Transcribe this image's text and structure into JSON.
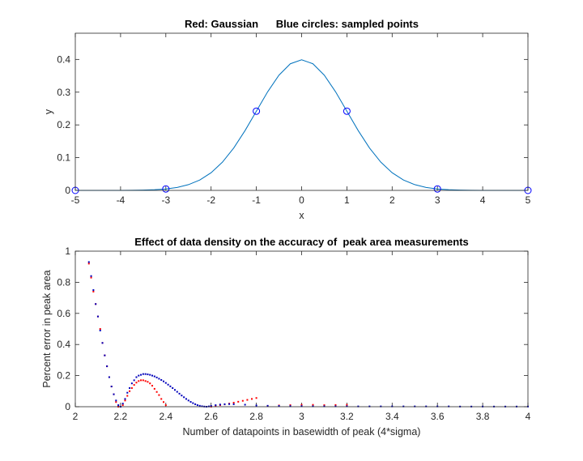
{
  "chart_data": [
    {
      "type": "line",
      "title": "Red: Gaussian      Blue circles: sampled points",
      "xlabel": "x",
      "ylabel": "y",
      "xlim": [
        -5,
        5
      ],
      "ylim": [
        0,
        0.48
      ],
      "xticks": [
        -5,
        -4,
        -3,
        -2,
        -1,
        0,
        1,
        2,
        3,
        4,
        5
      ],
      "xtick_labels": [
        "-5",
        "-4",
        "-3",
        "-2",
        "-1",
        "0",
        "1",
        "2",
        "3",
        "4",
        "5"
      ],
      "yticks": [
        0,
        0.1,
        0.2,
        0.3,
        0.4
      ],
      "ytick_labels": [
        "0",
        "0.1",
        "0.2",
        "0.3",
        "0.4"
      ],
      "grid": false,
      "colors": {
        "line": "#0072bd",
        "markers": "#0000ff"
      },
      "series": [
        {
          "kind": "line",
          "x": [
            -5,
            -4.75,
            -4.5,
            -4.25,
            -4,
            -3.75,
            -3.5,
            -3.25,
            -3,
            -2.75,
            -2.5,
            -2.25,
            -2,
            -1.75,
            -1.5,
            -1.25,
            -1,
            -0.75,
            -0.5,
            -0.25,
            0,
            0.25,
            0.5,
            0.75,
            1,
            1.25,
            1.5,
            1.75,
            2,
            2.25,
            2.5,
            2.75,
            3,
            3.25,
            3.5,
            3.75,
            4,
            4.25,
            4.5,
            4.75,
            5
          ],
          "y": [
            1.5e-06,
            5.1e-06,
            1.6e-05,
            4.9e-05,
            0.000134,
            0.000353,
            0.000873,
            0.002029,
            0.00443,
            0.00909,
            0.01753,
            0.03174,
            0.05399,
            0.08628,
            0.12952,
            0.18265,
            0.24197,
            0.30114,
            0.35207,
            0.38667,
            0.39894,
            0.38667,
            0.35207,
            0.30114,
            0.24197,
            0.18265,
            0.12952,
            0.08628,
            0.05399,
            0.03174,
            0.01753,
            0.00909,
            0.00443,
            0.002029,
            0.000873,
            0.000353,
            0.000134,
            4.9e-05,
            1.6e-05,
            5.1e-06,
            1.5e-06
          ]
        },
        {
          "kind": "markers",
          "x": [
            -5,
            -3,
            -1,
            1,
            3,
            5
          ],
          "y": [
            1.5e-06,
            0.00443,
            0.24197,
            0.24197,
            0.00443,
            1.5e-06
          ]
        }
      ]
    },
    {
      "type": "scatter",
      "title": "Effect of data density on the accuracy of  peak area measurements",
      "xlabel": "Number of datapoints in basewidth of peak (4*sigma)",
      "ylabel": "Percent error in peak area",
      "xlim": [
        2,
        4
      ],
      "ylim": [
        0,
        1
      ],
      "xticks": [
        2,
        2.2,
        2.4,
        2.6,
        2.8,
        3,
        3.2,
        3.4,
        3.6,
        3.8,
        4
      ],
      "xtick_labels": [
        "2",
        "2.2",
        "2.4",
        "2.6",
        "2.8",
        "3",
        "3.2",
        "3.4",
        "3.6",
        "3.8",
        "4"
      ],
      "yticks": [
        0,
        0.2,
        0.4,
        0.6,
        0.8,
        1
      ],
      "ytick_labels": [
        "0",
        "0.2",
        "0.4",
        "0.6",
        "0.8",
        "1"
      ],
      "grid": false,
      "colors": {
        "red_series": "#ff0000",
        "blue_series": "#0000bb"
      },
      "series": [
        {
          "color_role": "red_series",
          "x": [
            2.06,
            2.07,
            2.08,
            2.09,
            2.1,
            2.11,
            2.12,
            2.13,
            2.14,
            2.15,
            2.16,
            2.17,
            2.18,
            2.19,
            2.2,
            2.21,
            2.22,
            2.23,
            2.24,
            2.25,
            2.26,
            2.27,
            2.28,
            2.29,
            2.3,
            2.31,
            2.32,
            2.33,
            2.34,
            2.35,
            2.36,
            2.37,
            2.38,
            2.39,
            2.4,
            2.6,
            2.62,
            2.64,
            2.66,
            2.68,
            2.7,
            2.72,
            2.74,
            2.76,
            2.78,
            2.8,
            2.85,
            2.9,
            2.95,
            3.0,
            3.05,
            3.1,
            3.15,
            3.2
          ],
          "y": [
            0.92,
            0.83,
            0.74,
            0.66,
            0.58,
            0.5,
            0.41,
            0.33,
            0.26,
            0.19,
            0.13,
            0.08,
            0.03,
            0.0,
            0.0,
            0.01,
            0.04,
            0.07,
            0.1,
            0.12,
            0.14,
            0.155,
            0.165,
            0.17,
            0.17,
            0.165,
            0.16,
            0.15,
            0.135,
            0.115,
            0.095,
            0.075,
            0.05,
            0.03,
            0.01,
            0.0,
            0.005,
            0.01,
            0.015,
            0.02,
            0.026,
            0.032,
            0.038,
            0.044,
            0.05,
            0.056,
            0.005,
            0.008,
            0.01,
            0.012,
            0.012,
            0.01,
            0.011,
            0.012
          ]
        },
        {
          "color_role": "blue_series",
          "x": [
            2.06,
            2.07,
            2.08,
            2.09,
            2.1,
            2.11,
            2.12,
            2.13,
            2.14,
            2.15,
            2.16,
            2.17,
            2.18,
            2.19,
            2.2,
            2.21,
            2.22,
            2.23,
            2.24,
            2.25,
            2.26,
            2.27,
            2.28,
            2.29,
            2.3,
            2.31,
            2.32,
            2.33,
            2.34,
            2.35,
            2.36,
            2.37,
            2.38,
            2.39,
            2.4,
            2.41,
            2.42,
            2.43,
            2.44,
            2.45,
            2.46,
            2.47,
            2.48,
            2.49,
            2.5,
            2.51,
            2.52,
            2.53,
            2.54,
            2.55,
            2.56,
            2.57,
            2.58,
            2.59,
            2.6,
            2.62,
            2.64,
            2.66,
            2.68,
            2.7,
            2.75,
            2.8,
            2.85,
            2.9,
            2.95,
            3.0,
            3.05,
            3.1,
            3.15,
            3.2,
            3.25,
            3.3,
            3.35,
            3.4,
            3.45,
            3.5,
            3.55,
            3.6,
            3.65,
            3.7,
            3.75,
            3.8,
            3.85,
            3.9,
            3.95,
            4.0
          ],
          "y": [
            0.93,
            0.84,
            0.75,
            0.66,
            0.58,
            0.49,
            0.41,
            0.33,
            0.26,
            0.19,
            0.13,
            0.08,
            0.04,
            0.01,
            0.0,
            0.02,
            0.05,
            0.09,
            0.12,
            0.15,
            0.17,
            0.19,
            0.2,
            0.205,
            0.21,
            0.21,
            0.208,
            0.205,
            0.2,
            0.195,
            0.188,
            0.18,
            0.172,
            0.163,
            0.153,
            0.142,
            0.131,
            0.12,
            0.108,
            0.096,
            0.084,
            0.072,
            0.061,
            0.05,
            0.04,
            0.031,
            0.023,
            0.016,
            0.01,
            0.006,
            0.003,
            0.001,
            0.0,
            0.002,
            0.005,
            0.01,
            0.014,
            0.016,
            0.017,
            0.016,
            0.013,
            0.008,
            0.006,
            0.005,
            0.004,
            0.004,
            0.003,
            0.003,
            0.003,
            0.003,
            0.002,
            0.002,
            0.002,
            0.002,
            0.002,
            0.002,
            0.002,
            0.002,
            0.002,
            0.001,
            0.001,
            0.001,
            0.001,
            0.001,
            0.001,
            0.001
          ]
        }
      ]
    }
  ]
}
